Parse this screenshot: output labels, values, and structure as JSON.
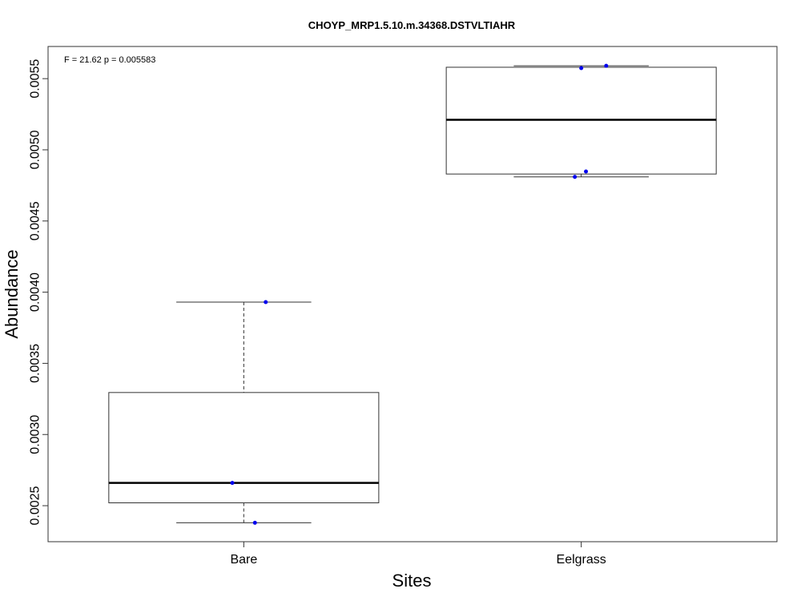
{
  "chart_data": {
    "type": "boxplot",
    "title": "CHOYP_MRP1.5.10.m.34368.DSTVLTIAHR",
    "annotation": "F = 21.62 p = 0.005583",
    "xlabel": "Sites",
    "ylabel": "Abundance",
    "categories": [
      "Bare",
      "Eelgrass"
    ],
    "ylim": [
      0.002247,
      0.005726
    ],
    "yticks": [
      0.0025,
      0.003,
      0.0035,
      0.004,
      0.0045,
      0.005,
      0.0055
    ],
    "ytick_labels": [
      "0.0025",
      "0.0030",
      "0.0035",
      "0.0040",
      "0.0045",
      "0.0050",
      "0.0055"
    ],
    "boxes": [
      {
        "category": "Bare",
        "min": 0.00238,
        "q1": 0.00252,
        "median": 0.00266,
        "q3": 0.003295,
        "max": 0.00393
      },
      {
        "category": "Eelgrass",
        "min": 0.00481,
        "q1": 0.00483,
        "median": 0.005211,
        "q3": 0.00558,
        "max": 0.00559
      }
    ],
    "points": [
      {
        "category": "Bare",
        "jitter": 0.065,
        "value": 0.00393
      },
      {
        "category": "Bare",
        "jitter": -0.034,
        "value": 0.00266
      },
      {
        "category": "Bare",
        "jitter": 0.033,
        "value": 0.00238
      },
      {
        "category": "Eelgrass",
        "jitter": 0.074,
        "value": 0.00559
      },
      {
        "category": "Eelgrass",
        "jitter": 0.0,
        "value": 0.005574
      },
      {
        "category": "Eelgrass",
        "jitter": 0.014,
        "value": 0.004848
      },
      {
        "category": "Eelgrass",
        "jitter": -0.019,
        "value": 0.00481
      }
    ],
    "point_color": "#0000ee",
    "grid": false
  }
}
